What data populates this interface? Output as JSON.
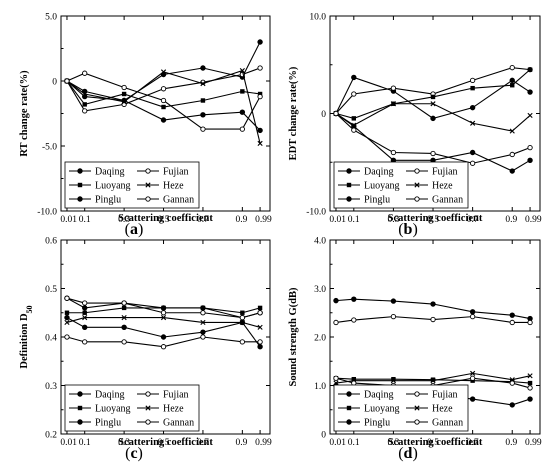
{
  "chart_data": [
    {
      "id": "a",
      "type": "line",
      "panel_label": "a",
      "xlabel": "Scattering coefficient",
      "ylabel": "RT change rate(%)",
      "ylim": [
        -10,
        5
      ],
      "yticks": [
        -10,
        -5,
        0,
        5
      ],
      "ytick_labels": [
        "-10.0",
        "-5.0",
        "0",
        "5.0"
      ],
      "x": [
        0.01,
        0.1,
        0.3,
        0.5,
        0.7,
        0.9,
        0.99
      ],
      "xtick_labels": [
        "0.01",
        "0.1",
        "0.3",
        "0.5",
        "0.7",
        "0.9",
        "0.99"
      ],
      "legend_position": "bottom-left",
      "series": [
        {
          "name": "Daqing",
          "marker": "filled",
          "values": [
            0,
            -0.8,
            -1.5,
            0.5,
            1.0,
            0.3,
            3.0
          ]
        },
        {
          "name": "Fujian",
          "marker": "open",
          "values": [
            0,
            -2.3,
            -1.8,
            -0.6,
            -0.1,
            0.5,
            1.0
          ]
        },
        {
          "name": "Luoyang",
          "marker": "square",
          "values": [
            0,
            -1.8,
            -1.0,
            -2.0,
            -1.5,
            -0.8,
            -1.0
          ]
        },
        {
          "name": "Heze",
          "marker": "cross",
          "values": [
            0,
            -1.0,
            -1.6,
            0.7,
            -0.2,
            0.8,
            -4.8
          ]
        },
        {
          "name": "Pinglu",
          "marker": "filled",
          "values": [
            0,
            -1.2,
            -1.5,
            -3.0,
            -2.6,
            -2.4,
            -3.8
          ]
        },
        {
          "name": "Gannan",
          "marker": "open",
          "values": [
            0,
            0.6,
            -0.5,
            -1.5,
            -3.7,
            -3.7,
            -1.2
          ]
        }
      ]
    },
    {
      "id": "b",
      "type": "line",
      "panel_label": "b",
      "xlabel": "Scattering coefficient",
      "ylabel": "EDT change rate(%)",
      "ylim": [
        -10,
        10
      ],
      "yticks": [
        -10,
        0,
        10
      ],
      "ytick_labels": [
        "-10.0",
        "0",
        "10.0"
      ],
      "x": [
        0.01,
        0.1,
        0.3,
        0.5,
        0.7,
        0.9,
        0.99
      ],
      "xtick_labels": [
        "0.01",
        "0.1",
        "0.3",
        "0.5",
        "0.7",
        "0.9",
        "0.99"
      ],
      "legend_position": "bottom-left",
      "series": [
        {
          "name": "Daqing",
          "marker": "filled",
          "values": [
            0,
            3.7,
            2.3,
            -0.5,
            0.6,
            3.4,
            2.2
          ]
        },
        {
          "name": "Fujian",
          "marker": "open",
          "values": [
            0,
            2.0,
            2.6,
            2.0,
            3.4,
            4.7,
            4.5
          ]
        },
        {
          "name": "Luoyang",
          "marker": "square",
          "values": [
            0,
            -0.5,
            1.0,
            1.7,
            2.6,
            2.9,
            4.5
          ]
        },
        {
          "name": "Heze",
          "marker": "cross",
          "values": [
            0,
            -1.2,
            1.0,
            1.0,
            -1.0,
            -1.8,
            -0.2
          ]
        },
        {
          "name": "Pinglu",
          "marker": "filled",
          "values": [
            0,
            -1.3,
            -4.8,
            -4.8,
            -4.0,
            -5.9,
            -4.8
          ]
        },
        {
          "name": "Gannan",
          "marker": "open",
          "values": [
            0,
            -1.7,
            -4.0,
            -4.1,
            -5.1,
            -4.2,
            -3.5
          ]
        }
      ]
    },
    {
      "id": "c",
      "type": "line",
      "panel_label": "c",
      "xlabel": "Scattering coefficient",
      "ylabel": "Definition D50",
      "ylabel_main": "Definition D",
      "ylabel_sub": "50",
      "ylim": [
        0.2,
        0.6
      ],
      "yticks": [
        0.2,
        0.3,
        0.4,
        0.5,
        0.6
      ],
      "ytick_labels": [
        "0.2",
        "0.3",
        "0.4",
        "0.5",
        "0.6"
      ],
      "x": [
        0.01,
        0.1,
        0.3,
        0.5,
        0.7,
        0.9,
        0.99
      ],
      "xtick_labels": [
        "0.01",
        "0.1",
        "0.3",
        "0.5",
        "0.7",
        "0.9",
        "0.99"
      ],
      "legend_position": "bottom-left",
      "series": [
        {
          "name": "Daqing",
          "marker": "filled",
          "values": [
            0.48,
            0.46,
            0.47,
            0.46,
            0.46,
            0.44,
            0.45
          ]
        },
        {
          "name": "Fujian",
          "marker": "open",
          "values": [
            0.4,
            0.39,
            0.39,
            0.38,
            0.4,
            0.39,
            0.39
          ]
        },
        {
          "name": "Luoyang",
          "marker": "square",
          "values": [
            0.45,
            0.45,
            0.46,
            0.46,
            0.46,
            0.45,
            0.46
          ]
        },
        {
          "name": "Heze",
          "marker": "cross",
          "values": [
            0.43,
            0.44,
            0.44,
            0.44,
            0.43,
            0.43,
            0.42
          ]
        },
        {
          "name": "Pinglu",
          "marker": "filled",
          "values": [
            0.44,
            0.42,
            0.42,
            0.4,
            0.41,
            0.43,
            0.38
          ]
        },
        {
          "name": "Gannan",
          "marker": "open",
          "values": [
            0.48,
            0.47,
            0.47,
            0.45,
            0.45,
            0.44,
            0.45
          ]
        }
      ]
    },
    {
      "id": "d",
      "type": "line",
      "panel_label": "d",
      "xlabel": "Scattering coefficient",
      "ylabel": "Sound strength G(dB)",
      "ylim": [
        0,
        4
      ],
      "yticks": [
        0,
        1,
        2,
        3,
        4
      ],
      "ytick_labels": [
        "0",
        "1.0",
        "2.0",
        "3.0",
        "4.0"
      ],
      "x": [
        0.01,
        0.1,
        0.3,
        0.5,
        0.7,
        0.9,
        0.99
      ],
      "xtick_labels": [
        "0.01",
        "0.1",
        "0.3",
        "0.5",
        "0.7",
        "0.9",
        "0.99"
      ],
      "legend_position": "bottom-left",
      "series": [
        {
          "name": "Daqing",
          "marker": "filled",
          "values": [
            2.75,
            2.78,
            2.74,
            2.68,
            2.52,
            2.45,
            2.38
          ]
        },
        {
          "name": "Fujian",
          "marker": "open",
          "values": [
            2.3,
            2.35,
            2.42,
            2.36,
            2.42,
            2.3,
            2.3
          ]
        },
        {
          "name": "Luoyang",
          "marker": "square",
          "values": [
            1.15,
            1.13,
            1.13,
            1.12,
            1.1,
            1.08,
            1.05
          ]
        },
        {
          "name": "Heze",
          "marker": "cross",
          "values": [
            1.05,
            1.1,
            1.1,
            1.1,
            1.25,
            1.12,
            1.2
          ]
        },
        {
          "name": "Pinglu",
          "marker": "filled",
          "values": [
            1.0,
            0.9,
            0.92,
            0.82,
            0.72,
            0.6,
            0.72
          ]
        },
        {
          "name": "Gannan",
          "marker": "open",
          "values": [
            1.15,
            1.05,
            1.0,
            1.0,
            1.15,
            1.05,
            0.95
          ]
        }
      ]
    }
  ]
}
